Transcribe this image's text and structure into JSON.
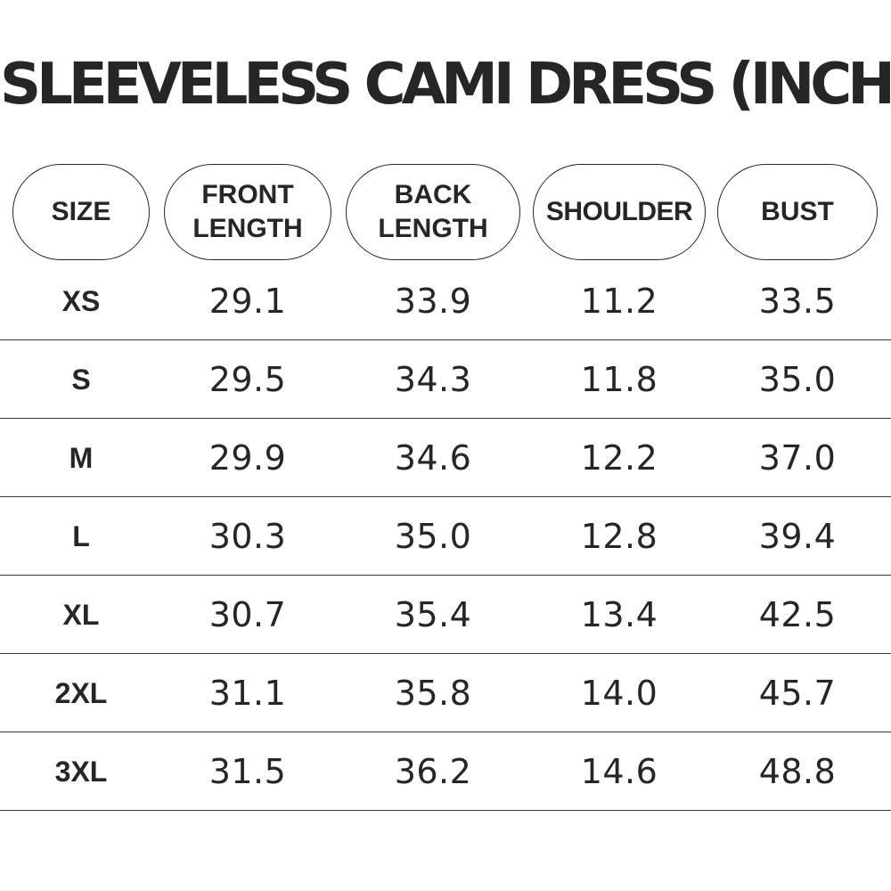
{
  "title": "SLEEVELESS CAMI DRESS (INCH)",
  "table": {
    "headers": [
      "SIZE",
      "FRONT\nLENGTH",
      "BACK\nLENGTH",
      "SHOULDER",
      "BUST"
    ],
    "rows": [
      {
        "size": "XS",
        "front_length": "29.1",
        "back_length": "33.9",
        "shoulder": "11.2",
        "bust": "33.5"
      },
      {
        "size": "S",
        "front_length": "29.5",
        "back_length": "34.3",
        "shoulder": "11.8",
        "bust": "35.0"
      },
      {
        "size": "M",
        "front_length": "29.9",
        "back_length": "34.6",
        "shoulder": "12.2",
        "bust": "37.0"
      },
      {
        "size": "L",
        "front_length": "30.3",
        "back_length": "35.0",
        "shoulder": "12.8",
        "bust": "39.4"
      },
      {
        "size": "XL",
        "front_length": "30.7",
        "back_length": "35.4",
        "shoulder": "13.4",
        "bust": "42.5"
      },
      {
        "size": "2XL",
        "front_length": "31.1",
        "back_length": "35.8",
        "shoulder": "14.0",
        "bust": "45.7"
      },
      {
        "size": "3XL",
        "front_length": "31.5",
        "back_length": "36.2",
        "shoulder": "14.6",
        "bust": "48.8"
      }
    ]
  }
}
